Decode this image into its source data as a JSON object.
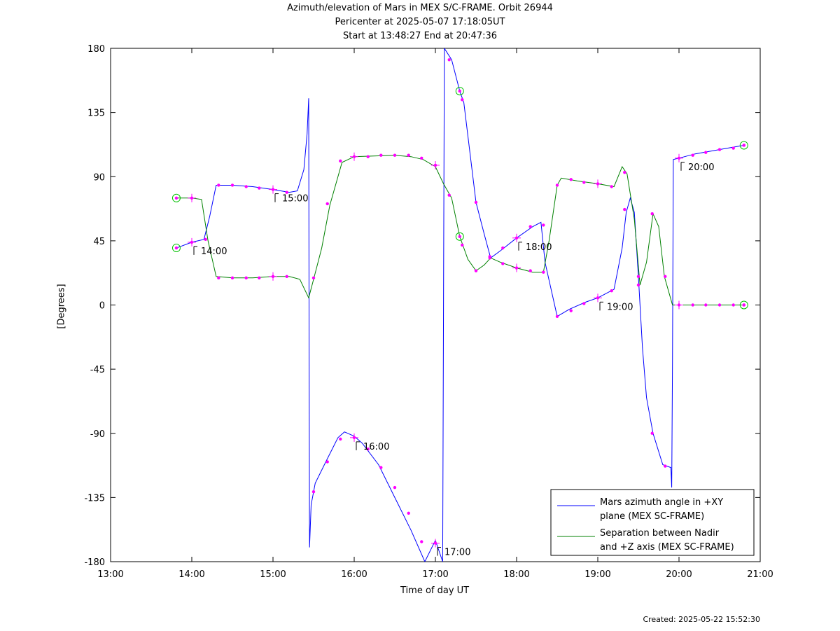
{
  "chart_data": {
    "type": "line",
    "title_lines": [
      "Azimuth/elevation of Mars in MEX S/C-FRAME.  Orbit 26944",
      "Pericenter at 2025-05-07 17:18:05UT",
      "Start at 13:48:27 End at 20:47:36"
    ],
    "xlabel": "Time of day UT",
    "ylabel": "[Degrees]",
    "xlim": [
      13.0,
      21.0
    ],
    "ylim": [
      -180,
      180
    ],
    "x_ticks": [
      "13:00",
      "14:00",
      "15:00",
      "16:00",
      "17:00",
      "18:00",
      "19:00",
      "20:00",
      "21:00"
    ],
    "y_ticks": [
      "180",
      "135",
      "90",
      "45",
      "0",
      "-45",
      "-90",
      "-135",
      "-180"
    ],
    "legend_position": "bottom-right",
    "series": [
      {
        "name": "Mars azimuth angle in +XY plane (MEX SC-FRAME)",
        "legend_lines": [
          "Mars azimuth angle in +XY",
          "plane (MEX SC-FRAME)"
        ],
        "color": "#0000ff",
        "points": [
          [
            13.81,
            40
          ],
          [
            14.0,
            44
          ],
          [
            14.15,
            46
          ],
          [
            14.22,
            62
          ],
          [
            14.3,
            84
          ],
          [
            14.5,
            84
          ],
          [
            14.75,
            83
          ],
          [
            15.0,
            81
          ],
          [
            15.2,
            79
          ],
          [
            15.3,
            80
          ],
          [
            15.38,
            95
          ],
          [
            15.42,
            120
          ],
          [
            15.44,
            145
          ],
          [
            15.445,
            -30
          ],
          [
            15.45,
            -170
          ],
          [
            15.47,
            -140
          ],
          [
            15.52,
            -125
          ],
          [
            15.65,
            -110
          ],
          [
            15.8,
            -93
          ],
          [
            15.88,
            -89
          ],
          [
            16.0,
            -92
          ],
          [
            16.1,
            -97
          ],
          [
            16.3,
            -112
          ],
          [
            16.5,
            -135
          ],
          [
            16.7,
            -158
          ],
          [
            16.87,
            -180
          ],
          [
            17.0,
            -165
          ],
          [
            17.09,
            -180
          ],
          [
            17.1,
            0
          ],
          [
            17.11,
            180
          ],
          [
            17.2,
            172
          ],
          [
            17.3,
            150
          ],
          [
            17.35,
            142
          ],
          [
            17.5,
            72
          ],
          [
            17.6,
            50
          ],
          [
            17.68,
            33
          ],
          [
            17.8,
            38
          ],
          [
            18.0,
            47
          ],
          [
            18.2,
            55
          ],
          [
            18.3,
            58
          ],
          [
            18.35,
            30
          ],
          [
            18.5,
            -8
          ],
          [
            18.65,
            -3
          ],
          [
            18.85,
            2
          ],
          [
            19.0,
            5
          ],
          [
            19.2,
            11
          ],
          [
            19.3,
            40
          ],
          [
            19.35,
            65
          ],
          [
            19.4,
            75
          ],
          [
            19.45,
            65
          ],
          [
            19.5,
            20
          ],
          [
            19.55,
            -30
          ],
          [
            19.6,
            -65
          ],
          [
            19.68,
            -90
          ],
          [
            19.8,
            -112
          ],
          [
            19.9,
            -114
          ],
          [
            19.91,
            -128
          ],
          [
            19.92,
            -40
          ],
          [
            19.93,
            102
          ],
          [
            20.0,
            103
          ],
          [
            20.2,
            106
          ],
          [
            20.4,
            108
          ],
          [
            20.6,
            110
          ],
          [
            20.8,
            112
          ]
        ]
      },
      {
        "name": "Separation between Nadir and +Z axis (MEX SC-FRAME)",
        "legend_lines": [
          "Separation between Nadir",
          "and +Z axis (MEX SC-FRAME)"
        ],
        "color": "#008000",
        "points": [
          [
            13.81,
            75
          ],
          [
            14.0,
            75
          ],
          [
            14.12,
            74
          ],
          [
            14.2,
            45
          ],
          [
            14.3,
            20
          ],
          [
            14.5,
            19
          ],
          [
            14.75,
            19
          ],
          [
            15.0,
            20
          ],
          [
            15.2,
            20
          ],
          [
            15.33,
            18
          ],
          [
            15.44,
            5
          ],
          [
            15.5,
            18
          ],
          [
            15.6,
            40
          ],
          [
            15.7,
            70
          ],
          [
            15.85,
            100
          ],
          [
            16.0,
            104
          ],
          [
            16.5,
            105
          ],
          [
            16.7,
            104
          ],
          [
            16.85,
            102
          ],
          [
            17.0,
            97
          ],
          [
            17.1,
            85
          ],
          [
            17.2,
            75
          ],
          [
            17.3,
            48
          ],
          [
            17.4,
            32
          ],
          [
            17.5,
            24
          ],
          [
            17.6,
            28
          ],
          [
            17.68,
            33
          ],
          [
            17.8,
            30
          ],
          [
            18.0,
            26
          ],
          [
            18.2,
            23
          ],
          [
            18.33,
            23
          ],
          [
            18.4,
            45
          ],
          [
            18.5,
            84
          ],
          [
            18.55,
            89
          ],
          [
            18.75,
            87
          ],
          [
            19.0,
            85
          ],
          [
            19.2,
            83
          ],
          [
            19.3,
            97
          ],
          [
            19.36,
            92
          ],
          [
            19.45,
            60
          ],
          [
            19.52,
            14
          ],
          [
            19.6,
            30
          ],
          [
            19.68,
            64
          ],
          [
            19.75,
            55
          ],
          [
            19.82,
            20
          ],
          [
            19.92,
            0
          ],
          [
            20.0,
            0
          ],
          [
            20.8,
            0
          ]
        ]
      }
    ],
    "markers": {
      "color": "#ff00ff",
      "azimuth_dots": [
        [
          14.0,
          44
        ],
        [
          14.17,
          46
        ],
        [
          14.33,
          84
        ],
        [
          14.5,
          84
        ],
        [
          14.67,
          83
        ],
        [
          14.83,
          82
        ],
        [
          15.0,
          81
        ],
        [
          15.17,
          79
        ],
        [
          15.5,
          -131
        ],
        [
          15.67,
          -110
        ],
        [
          15.83,
          -94
        ],
        [
          16.0,
          -93
        ],
        [
          16.17,
          -101
        ],
        [
          16.33,
          -114
        ],
        [
          16.5,
          -128
        ],
        [
          16.67,
          -146
        ],
        [
          16.83,
          -166
        ],
        [
          17.0,
          -167
        ],
        [
          17.17,
          172
        ],
        [
          17.33,
          144
        ],
        [
          17.5,
          72
        ],
        [
          17.67,
          34
        ],
        [
          17.83,
          40
        ],
        [
          18.0,
          47
        ],
        [
          18.17,
          55
        ],
        [
          18.33,
          56
        ],
        [
          18.5,
          -8
        ],
        [
          18.67,
          -4
        ],
        [
          18.83,
          1
        ],
        [
          19.0,
          5
        ],
        [
          19.17,
          10
        ],
        [
          19.33,
          67
        ],
        [
          19.5,
          20
        ],
        [
          19.67,
          -90
        ],
        [
          19.83,
          -113
        ],
        [
          20.0,
          103
        ],
        [
          20.17,
          105
        ],
        [
          20.33,
          107
        ],
        [
          20.5,
          109
        ],
        [
          20.67,
          110
        ],
        [
          20.8,
          112
        ]
      ],
      "separation_dots": [
        [
          14.0,
          75
        ],
        [
          14.33,
          19
        ],
        [
          14.5,
          19
        ],
        [
          14.67,
          19
        ],
        [
          14.83,
          19
        ],
        [
          15.0,
          20
        ],
        [
          15.17,
          20
        ],
        [
          15.5,
          19
        ],
        [
          15.67,
          71
        ],
        [
          15.83,
          101
        ],
        [
          16.0,
          104
        ],
        [
          16.17,
          104
        ],
        [
          16.33,
          105
        ],
        [
          16.5,
          105
        ],
        [
          16.67,
          105
        ],
        [
          16.83,
          103
        ],
        [
          17.0,
          98
        ],
        [
          17.17,
          77
        ],
        [
          17.33,
          42
        ],
        [
          17.5,
          24
        ],
        [
          17.67,
          33
        ],
        [
          17.83,
          29
        ],
        [
          18.0,
          26
        ],
        [
          18.17,
          24
        ],
        [
          18.33,
          23
        ],
        [
          18.5,
          84
        ],
        [
          18.67,
          88
        ],
        [
          18.83,
          86
        ],
        [
          19.0,
          85
        ],
        [
          19.17,
          83
        ],
        [
          19.33,
          93
        ],
        [
          19.5,
          14
        ],
        [
          19.67,
          64
        ],
        [
          19.83,
          20
        ],
        [
          20.0,
          0
        ],
        [
          20.17,
          0
        ],
        [
          20.33,
          0
        ],
        [
          20.5,
          0
        ],
        [
          20.67,
          0
        ],
        [
          20.8,
          0
        ]
      ],
      "hour_crosses": [
        [
          14.0,
          44
        ],
        [
          15.0,
          81
        ],
        [
          16.0,
          -93
        ],
        [
          17.0,
          -167
        ],
        [
          18.0,
          47
        ],
        [
          19.0,
          5
        ],
        [
          20.0,
          103
        ],
        [
          14.0,
          75
        ],
        [
          15.0,
          20
        ],
        [
          16.0,
          104
        ],
        [
          17.0,
          98
        ],
        [
          18.0,
          26
        ],
        [
          19.0,
          85
        ],
        [
          20.0,
          0
        ]
      ],
      "circle_color": "#00c000",
      "circles": [
        [
          13.81,
          40
        ],
        [
          13.81,
          75
        ],
        [
          17.3,
          150
        ],
        [
          17.3,
          48
        ],
        [
          20.8,
          112
        ],
        [
          20.8,
          0
        ]
      ]
    },
    "time_labels": [
      {
        "text": "14:00",
        "x": 14.0,
        "y": 44
      },
      {
        "text": "15:00",
        "x": 15.0,
        "y": 81
      },
      {
        "text": "16:00",
        "x": 16.0,
        "y": -93
      },
      {
        "text": "17:00",
        "x": 17.0,
        "y": -167
      },
      {
        "text": "18:00",
        "x": 18.0,
        "y": 47
      },
      {
        "text": "19:00",
        "x": 19.0,
        "y": 5
      },
      {
        "text": "20:00",
        "x": 20.0,
        "y": 103
      }
    ],
    "grid": false
  },
  "footer": {
    "created": "Created: 2025-05-22 15:52:30"
  }
}
